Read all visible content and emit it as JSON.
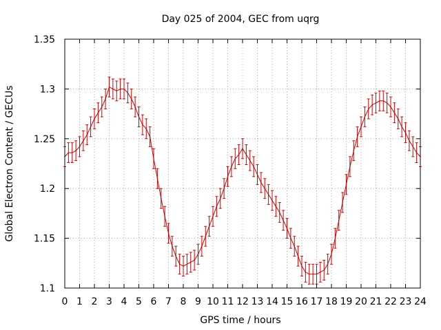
{
  "chart_data": {
    "type": "line",
    "title": "Day 025 of 2004, GEC from uqrg",
    "xlabel": "GPS time / hours",
    "ylabel": "Global Electron Content / GECUs",
    "xlim": [
      0,
      24
    ],
    "ylim": [
      1.1,
      1.35
    ],
    "x_ticks": [
      "0",
      "1",
      "2",
      "3",
      "4",
      "5",
      "6",
      "7",
      "8",
      "9",
      "10",
      "11",
      "12",
      "13",
      "14",
      "15",
      "16",
      "17",
      "18",
      "19",
      "20",
      "21",
      "22",
      "23",
      "24"
    ],
    "y_ticks": [
      "1.1",
      "1.15",
      "1.2",
      "1.25",
      "1.3",
      "1.35"
    ],
    "grid": true,
    "series_color": "#cc0000",
    "error": 0.01,
    "series": [
      {
        "name": "GEC",
        "x": [
          0,
          0.25,
          0.5,
          0.75,
          1,
          1.25,
          1.5,
          1.75,
          2,
          2.25,
          2.5,
          2.75,
          3,
          3.25,
          3.5,
          3.75,
          4,
          4.25,
          4.5,
          4.75,
          5,
          5.25,
          5.5,
          5.75,
          6,
          6.25,
          6.5,
          6.75,
          7,
          7.25,
          7.5,
          7.75,
          8,
          8.25,
          8.5,
          8.75,
          9,
          9.25,
          9.5,
          9.75,
          10,
          10.25,
          10.5,
          10.75,
          11,
          11.25,
          11.5,
          11.75,
          12,
          12.25,
          12.5,
          12.75,
          13,
          13.25,
          13.5,
          13.75,
          14,
          14.25,
          14.5,
          14.75,
          15,
          15.25,
          15.5,
          15.75,
          16,
          16.25,
          16.5,
          16.75,
          17,
          17.25,
          17.5,
          17.75,
          18,
          18.25,
          18.5,
          18.75,
          19,
          19.25,
          19.5,
          19.75,
          20,
          20.25,
          20.5,
          20.75,
          21,
          21.25,
          21.5,
          21.75,
          22,
          22.25,
          22.5,
          22.75,
          23,
          23.25,
          23.5,
          23.75,
          24
        ],
        "values": [
          1.232,
          1.236,
          1.236,
          1.238,
          1.242,
          1.248,
          1.254,
          1.262,
          1.27,
          1.276,
          1.282,
          1.29,
          1.302,
          1.3,
          1.298,
          1.3,
          1.3,
          1.296,
          1.29,
          1.282,
          1.272,
          1.264,
          1.26,
          1.252,
          1.23,
          1.21,
          1.19,
          1.172,
          1.155,
          1.142,
          1.132,
          1.124,
          1.122,
          1.124,
          1.126,
          1.128,
          1.134,
          1.142,
          1.152,
          1.162,
          1.172,
          1.182,
          1.19,
          1.2,
          1.212,
          1.222,
          1.23,
          1.234,
          1.24,
          1.234,
          1.228,
          1.222,
          1.214,
          1.206,
          1.2,
          1.194,
          1.188,
          1.182,
          1.176,
          1.168,
          1.16,
          1.15,
          1.142,
          1.132,
          1.122,
          1.116,
          1.114,
          1.114,
          1.114,
          1.116,
          1.118,
          1.124,
          1.134,
          1.15,
          1.168,
          1.186,
          1.204,
          1.222,
          1.238,
          1.252,
          1.262,
          1.272,
          1.28,
          1.284,
          1.286,
          1.288,
          1.288,
          1.286,
          1.282,
          1.276,
          1.27,
          1.262,
          1.256,
          1.248,
          1.242,
          1.236,
          1.232
        ]
      }
    ]
  }
}
